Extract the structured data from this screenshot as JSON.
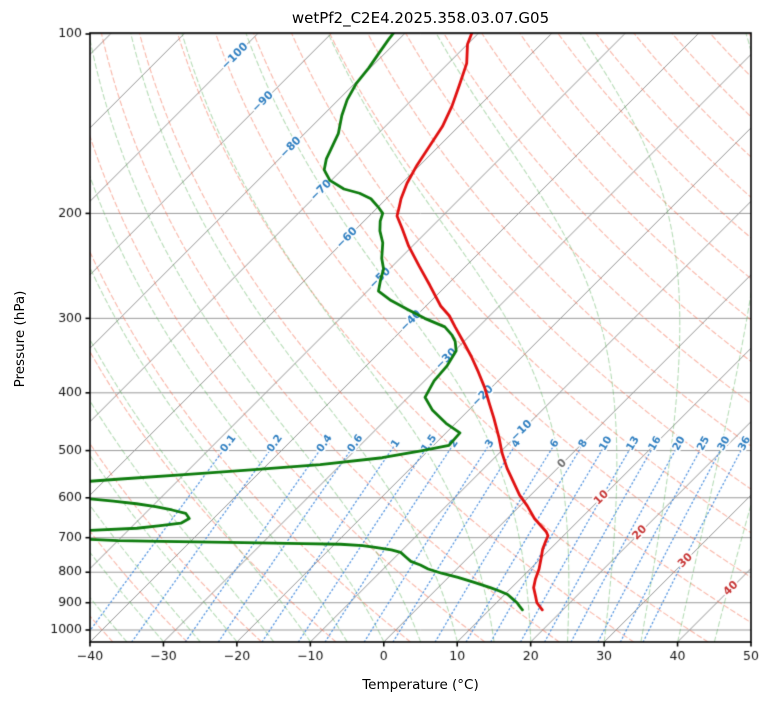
{
  "chart_data": {
    "type": "line",
    "variant": "skew_t_log_p",
    "title": "wetPf2_C2E4.2025.358.03.07.G05",
    "xlabel": "Temperature (°C)",
    "ylabel": "Pressure (hPa)",
    "x_ticks": [
      -40,
      -30,
      -20,
      -10,
      0,
      10,
      20,
      30,
      40,
      50
    ],
    "y_ticks": [
      100,
      200,
      300,
      400,
      500,
      600,
      700,
      800,
      900,
      1000
    ],
    "xlim_c": [
      -40,
      50
    ],
    "pressure_top_hpa": 97,
    "pressure_bottom_hpa": 1047,
    "skew": "isotherms_45deg",
    "grid": true,
    "series": [
      {
        "name": "temperature",
        "color": "#e01010",
        "points_p_t": [
          [
            97,
            -71.5
          ],
          [
            104,
            -70.0
          ],
          [
            112,
            -67.5
          ],
          [
            122,
            -65.5
          ],
          [
            132,
            -63.7
          ],
          [
            143,
            -62.2
          ],
          [
            154,
            -61.3
          ],
          [
            166,
            -60.4
          ],
          [
            178,
            -59.3
          ],
          [
            189,
            -58.0
          ],
          [
            196,
            -57.0
          ],
          [
            202,
            -56.2
          ],
          [
            212,
            -53.8
          ],
          [
            227,
            -50.5
          ],
          [
            245,
            -46.4
          ],
          [
            264,
            -42.3
          ],
          [
            286,
            -38.0
          ],
          [
            297,
            -35.5
          ],
          [
            310,
            -33.2
          ],
          [
            328,
            -30.1
          ],
          [
            348,
            -26.9
          ],
          [
            369,
            -23.9
          ],
          [
            392,
            -20.9
          ],
          [
            416,
            -18.2
          ],
          [
            441,
            -15.5
          ],
          [
            476,
            -12.1
          ],
          [
            505,
            -9.6
          ],
          [
            535,
            -6.9
          ],
          [
            567,
            -3.9
          ],
          [
            594,
            -1.5
          ],
          [
            619,
            1.0
          ],
          [
            650,
            3.7
          ],
          [
            684,
            7.1
          ],
          [
            695,
            7.9
          ],
          [
            712,
            8.4
          ],
          [
            732,
            9.0
          ],
          [
            760,
            10.1
          ],
          [
            790,
            11.2
          ],
          [
            822,
            12.1
          ],
          [
            849,
            13.0
          ],
          [
            879,
            14.5
          ],
          [
            900,
            15.5
          ],
          [
            925,
            17.2
          ]
        ]
      },
      {
        "name": "dewpoint",
        "color": "#0e7c0e",
        "points_p_t": [
          [
            97,
            -81.8
          ],
          [
            102,
            -81.4
          ],
          [
            108,
            -80.8
          ],
          [
            114,
            -80.2
          ],
          [
            121,
            -79.8
          ],
          [
            129,
            -78.8
          ],
          [
            137,
            -77.4
          ],
          [
            147,
            -75.4
          ],
          [
            156,
            -74.3
          ],
          [
            162,
            -73.6
          ],
          [
            169,
            -72.4
          ],
          [
            176,
            -70.2
          ],
          [
            182,
            -67.1
          ],
          [
            185,
            -64.4
          ],
          [
            189,
            -62.1
          ],
          [
            196,
            -59.7
          ],
          [
            200,
            -58.5
          ],
          [
            206,
            -57.8
          ],
          [
            214,
            -56.5
          ],
          [
            224,
            -54.5
          ],
          [
            238,
            -52.5
          ],
          [
            248,
            -50.8
          ],
          [
            258,
            -49.8
          ],
          [
            270,
            -48.5
          ],
          [
            280,
            -45.5
          ],
          [
            290,
            -42.0
          ],
          [
            300,
            -38.5
          ],
          [
            310,
            -34.6
          ],
          [
            320,
            -32.5
          ],
          [
            328,
            -31.2
          ],
          [
            340,
            -29.8
          ],
          [
            360,
            -29.0
          ],
          [
            382,
            -28.7
          ],
          [
            407,
            -27.7
          ],
          [
            428,
            -24.9
          ],
          [
            450,
            -21.3
          ],
          [
            467,
            -18.1
          ],
          [
            490,
            -17.9
          ],
          [
            500,
            -20.8
          ],
          [
            514,
            -25.3
          ],
          [
            528,
            -32.8
          ],
          [
            538,
            -41.1
          ],
          [
            548,
            -49.5
          ],
          [
            558,
            -58.0
          ],
          [
            563,
            -62.0
          ],
          [
            575,
            -72.0
          ],
          [
            590,
            -69.0
          ],
          [
            601,
            -60.5
          ],
          [
            608,
            -56.0
          ],
          [
            614,
            -52.5
          ],
          [
            621,
            -49.5
          ],
          [
            629,
            -46.8
          ],
          [
            637,
            -44.5
          ],
          [
            650,
            -43.3
          ],
          [
            662,
            -43.8
          ],
          [
            669,
            -46.5
          ],
          [
            675,
            -49.1
          ],
          [
            681,
            -55.7
          ],
          [
            687,
            -63.0
          ],
          [
            695,
            -60.0
          ],
          [
            703,
            -56.0
          ],
          [
            708,
            -50.0
          ],
          [
            710,
            -44.0
          ],
          [
            712,
            -37.0
          ],
          [
            714,
            -30.5
          ],
          [
            716,
            -24.5
          ],
          [
            718,
            -19.2
          ],
          [
            722,
            -16.0
          ],
          [
            726,
            -14.3
          ],
          [
            734,
            -11.5
          ],
          [
            741,
            -9.9
          ],
          [
            755,
            -8.5
          ],
          [
            767,
            -7.3
          ],
          [
            778,
            -5.5
          ],
          [
            790,
            -3.9
          ],
          [
            803,
            -1.5
          ],
          [
            816,
            1.3
          ],
          [
            832,
            4.2
          ],
          [
            849,
            7.1
          ],
          [
            860,
            8.8
          ],
          [
            872,
            10.4
          ],
          [
            886,
            11.6
          ],
          [
            900,
            12.8
          ],
          [
            912,
            13.6
          ],
          [
            925,
            14.5
          ]
        ]
      }
    ],
    "background_lines": {
      "isobars": {
        "color": "#999999"
      },
      "isotherms": {
        "from_c": -120,
        "to_c": 50,
        "step_c": 10,
        "color": "#949494",
        "label_colors": {
          "negative": "#2f7fc1",
          "zero": "#707070",
          "positive": "#c73535"
        },
        "labels": [
          {
            "t": -100,
            "p": 109
          },
          {
            "t": -90,
            "p": 130
          },
          {
            "t": -80,
            "p": 155
          },
          {
            "t": -70,
            "p": 183
          },
          {
            "t": -60,
            "p": 220
          },
          {
            "t": -50,
            "p": 257
          },
          {
            "t": -40,
            "p": 303
          },
          {
            "t": -30,
            "p": 351
          },
          {
            "t": -20,
            "p": 405
          },
          {
            "t": -10,
            "p": 463
          },
          {
            "t": 0,
            "p": 526
          },
          {
            "t": 10,
            "p": 600
          },
          {
            "t": 20,
            "p": 687
          },
          {
            "t": 30,
            "p": 765
          },
          {
            "t": 40,
            "p": 852
          }
        ]
      },
      "dry_adiabats": {
        "theta_c_from": -40,
        "theta_c_to": 200,
        "step_c": 10,
        "color": "rgba(244,112,84,0.5)"
      },
      "moist_adiabats": {
        "start_c_from": -40,
        "start_c_to": 65,
        "step_c": 5,
        "color": "rgba(95,178,95,0.45)"
      },
      "mixing_ratio": {
        "values_g_kg": [
          0.1,
          0.2,
          0.4,
          0.6,
          1,
          1.5,
          2,
          3,
          4,
          6,
          8,
          10,
          13,
          16,
          20,
          25,
          30,
          36
        ],
        "labels": [
          "0.1",
          "0.2",
          "0.4",
          "0.6",
          "1",
          "1.5",
          "2",
          "3",
          "4",
          "6",
          "8",
          "10",
          "13",
          "16",
          "20",
          "25",
          "30",
          "36"
        ],
        "line_color": "rgba(62,135,220,0.85)",
        "label_color": "#2f7fc1",
        "from_pressure_hpa": 1047,
        "to_pressure_hpa": 480,
        "label_pressure_hpa": 487
      }
    }
  }
}
